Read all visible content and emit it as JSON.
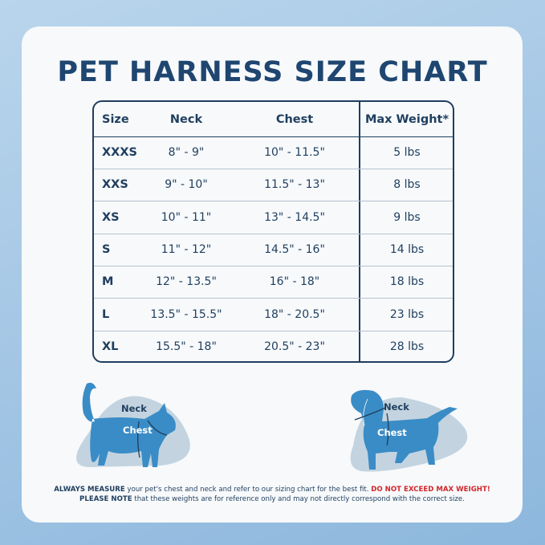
{
  "title": "PET HARNESS SIZE CHART",
  "table": {
    "headers": {
      "size": "Size",
      "neck": "Neck",
      "chest": "Chest",
      "weight": "Max Weight*"
    },
    "rows": [
      {
        "size": "XXXS",
        "neck": "8\" - 9\"",
        "chest": "10\" - 11.5\"",
        "weight": "5 lbs"
      },
      {
        "size": "XXS",
        "neck": "9\" - 10\"",
        "chest": "11.5\" - 13\"",
        "weight": "8 lbs"
      },
      {
        "size": "XS",
        "neck": "10\" - 11\"",
        "chest": "13\" - 14.5\"",
        "weight": "9 lbs"
      },
      {
        "size": "S",
        "neck": "11\" - 12\"",
        "chest": "14.5\" - 16\"",
        "weight": "14 lbs"
      },
      {
        "size": "M",
        "neck": "12\" - 13.5\"",
        "chest": "16\" - 18\"",
        "weight": "18 lbs"
      },
      {
        "size": "L",
        "neck": "13.5\" - 15.5\"",
        "chest": "18\" - 20.5\"",
        "weight": "23 lbs"
      },
      {
        "size": "XL",
        "neck": "15.5\" - 18\"",
        "chest": "20.5\" - 23\"",
        "weight": "28 lbs"
      }
    ]
  },
  "cat": {
    "neck_label": "Neck",
    "chest_label": "Chest"
  },
  "dog": {
    "neck_label": "Neck",
    "chest_label": "Chest"
  },
  "footer": {
    "line1_bold": "ALWAYS MEASURE",
    "line1_text": " your pet's chest and neck and refer  to our sizing chart for the best fit. ",
    "line1_warning": "DO NOT EXCEED MAX WEIGHT!",
    "line2_bold": "PLEASE NOTE",
    "line2_text": " that these weights are for reference only and may not directly correspond with the correct size."
  },
  "colors": {
    "navy": "#1f3e5e",
    "pet_blue": "#3a8cc6",
    "blob": "#c3d4e0",
    "warning": "#d1262b"
  }
}
